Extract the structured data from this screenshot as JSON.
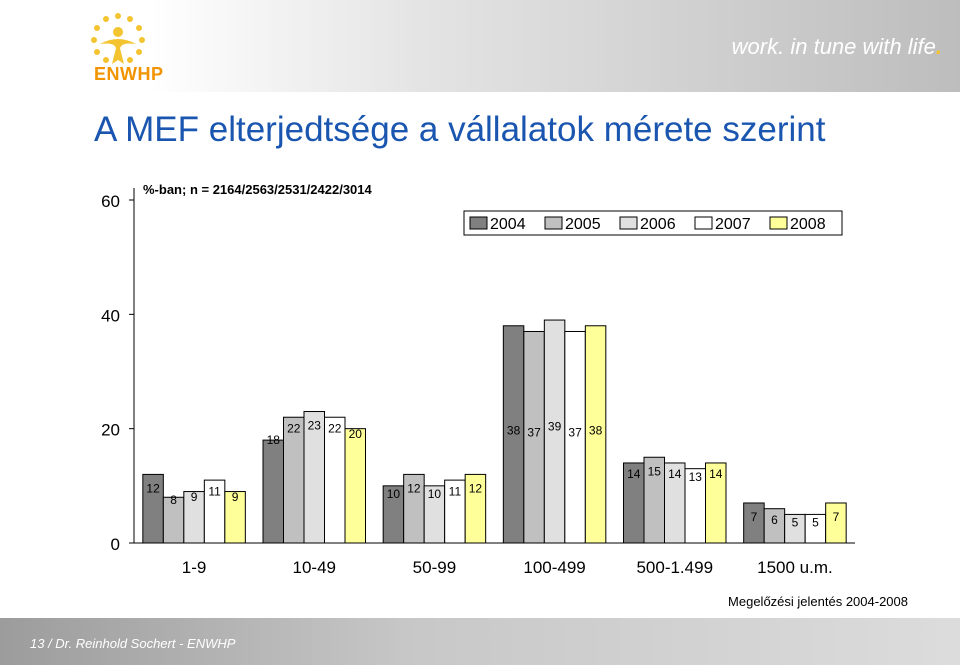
{
  "header": {
    "slogan": "work. in tune with life",
    "slogan_dot": ".",
    "logo_text": "ENWHP"
  },
  "slide": {
    "title": "A MEF elterjedtsége a vállalatok mérete szerint",
    "footer": "13 / Dr. Reinhold Sochert - ENWHP"
  },
  "chart_data": {
    "type": "bar",
    "subtitle": "%-ban; n = 2164/2563/2531/2422/3014",
    "source": "Megelőzési jelentés 2004-2008",
    "categories": [
      "1-9",
      "10-49",
      "50-99",
      "100-499",
      "500-1.499",
      "1500 u.m."
    ],
    "series": [
      {
        "name": "2004",
        "values": [
          12,
          18,
          10,
          38,
          14,
          7
        ],
        "color": "#808080"
      },
      {
        "name": "2005",
        "values": [
          8,
          22,
          12,
          37,
          15,
          6
        ],
        "color": "#c0c0c0"
      },
      {
        "name": "2006",
        "values": [
          9,
          23,
          10,
          39,
          14,
          5
        ],
        "color": "#e0e0e0"
      },
      {
        "name": "2007",
        "values": [
          11,
          22,
          11,
          37,
          13,
          5
        ],
        "color": "#ffffff"
      },
      {
        "name": "2008",
        "values": [
          9,
          20,
          12,
          38,
          14,
          7
        ],
        "color": "#ffff99"
      }
    ],
    "yticks": [
      0,
      20,
      40,
      60
    ],
    "ylim": [
      0,
      60
    ],
    "grid": false,
    "legend_position": "top-right"
  }
}
